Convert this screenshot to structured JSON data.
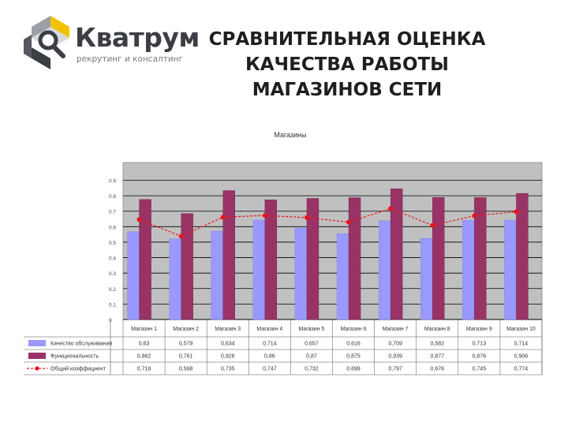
{
  "brand": {
    "name": "Кватрум",
    "tagline": "рекрутинг и консалтинг",
    "colors": {
      "yellow": "#f2c200",
      "gray": "#3b3f44"
    }
  },
  "title_lines": [
    "СРАВНИТЕЛЬНАЯ ОЦЕНКА",
    "КАЧЕСТВА РАБОТЫ",
    "МАГАЗИНОВ СЕТИ"
  ],
  "chart_data": {
    "type": "bar",
    "title": "Магазины",
    "categories": [
      "Магазин 1",
      "Магазин 2",
      "Магазин 3",
      "Магазин 4",
      "Магазин 5",
      "Магазин 6",
      "Магазин 7",
      "Магазин 8",
      "Магазин 9",
      "Магазин 10"
    ],
    "y_tick_labels": [
      "0.9",
      "0.8",
      "0.7",
      "0.6",
      "0.5",
      "0.4",
      "0.3",
      "0.2",
      "0.1",
      "0"
    ],
    "ylim": [
      0,
      1
    ],
    "series": [
      {
        "name": "Качество обслуживания",
        "kind": "bar",
        "color": "#9999ff",
        "values": [
          0.63,
          0.579,
          0.634,
          0.714,
          0.657,
          0.616,
          0.709,
          0.582,
          0.713,
          0.714
        ],
        "labels": [
          "0,63",
          "0,579",
          "0,634",
          "0,714",
          "0,657",
          "0,616",
          "0,709",
          "0,582",
          "0,713",
          "0,714"
        ]
      },
      {
        "name": "Функциональность",
        "kind": "bar",
        "color": "#993366",
        "values": [
          0.862,
          0.761,
          0.926,
          0.86,
          0.87,
          0.875,
          0.939,
          0.877,
          0.876,
          0.906
        ],
        "labels": [
          "0,862",
          "0,761",
          "0,926",
          "0,86",
          "0,87",
          "0,875",
          "0,939",
          "0,877",
          "0,876",
          "0,906"
        ]
      },
      {
        "name": "Общий коэффициент",
        "kind": "line",
        "color": "#e8141c",
        "values": [
          0.718,
          0.598,
          0.735,
          0.747,
          0.732,
          0.699,
          0.797,
          0.676,
          0.745,
          0.774
        ],
        "labels": [
          "0,718",
          "0,598",
          "0,735",
          "0,747",
          "0,732",
          "0,699",
          "0,797",
          "0,676",
          "0,745",
          "0,774"
        ]
      }
    ],
    "grid": true,
    "legend": "table-below",
    "plot_background": "#c0c0c0"
  }
}
